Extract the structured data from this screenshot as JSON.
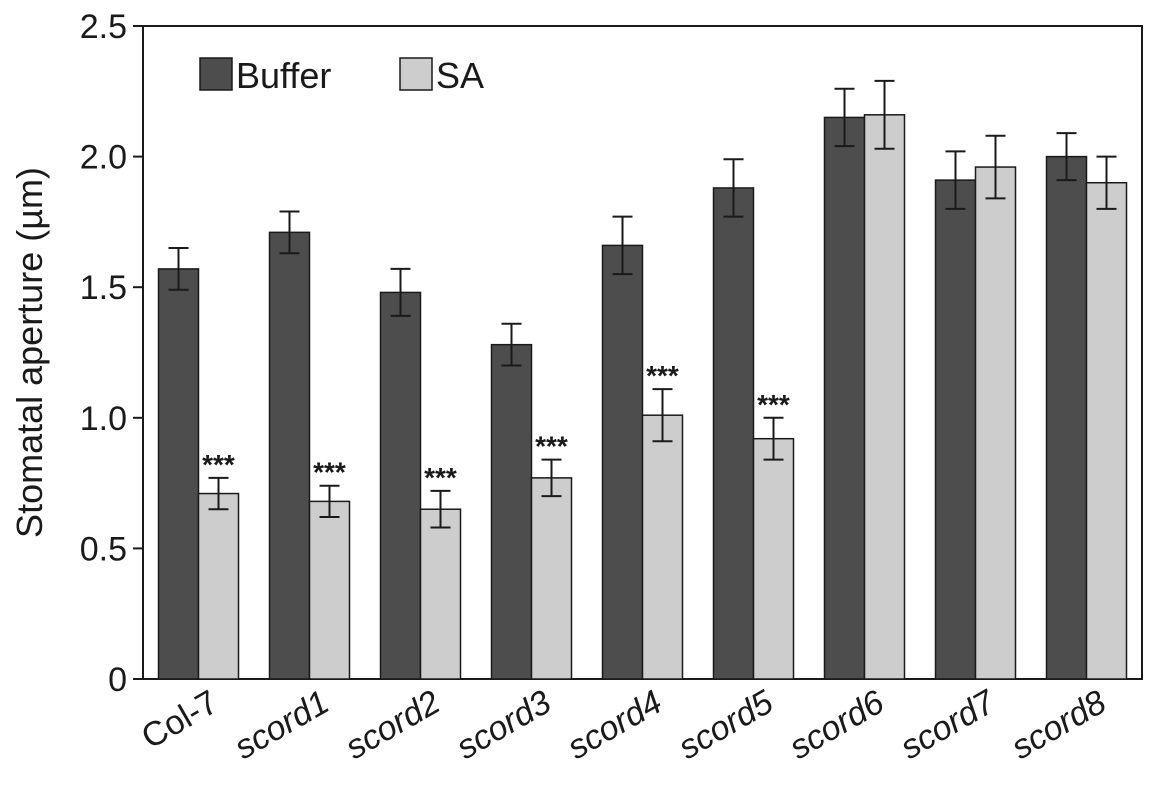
{
  "chart_data": {
    "type": "bar",
    "title": "",
    "xlabel": "",
    "ylabel": "Stomatal aperture (µm)",
    "ylim": [
      0,
      2.5
    ],
    "yticks": [
      0,
      0.5,
      1.0,
      1.5,
      2.0,
      2.5
    ],
    "ytick_labels": [
      "0",
      "0.5",
      "1.0",
      "1.5",
      "2.0",
      "2.5"
    ],
    "categories": [
      {
        "label": "Col-7",
        "italic": false
      },
      {
        "label": "scord1",
        "italic": true
      },
      {
        "label": "scord2",
        "italic": true
      },
      {
        "label": "scord3",
        "italic": true
      },
      {
        "label": "scord4",
        "italic": true
      },
      {
        "label": "scord5",
        "italic": true
      },
      {
        "label": "scord6",
        "italic": true
      },
      {
        "label": "scord7",
        "italic": true
      },
      {
        "label": "scord8",
        "italic": true
      }
    ],
    "series": [
      {
        "name": "Buffer",
        "color": "#4d4d4d",
        "values": [
          1.57,
          1.71,
          1.48,
          1.28,
          1.66,
          1.88,
          2.15,
          1.91,
          2.0
        ],
        "errors": [
          0.08,
          0.08,
          0.09,
          0.08,
          0.11,
          0.11,
          0.11,
          0.11,
          0.09
        ],
        "significance": [
          "",
          "",
          "",
          "",
          "",
          "",
          "",
          "",
          ""
        ]
      },
      {
        "name": "SA",
        "color": "#cdcdcd",
        "values": [
          0.71,
          0.68,
          0.65,
          0.77,
          1.01,
          0.92,
          2.16,
          1.96,
          1.9
        ],
        "errors": [
          0.06,
          0.06,
          0.07,
          0.07,
          0.1,
          0.08,
          0.13,
          0.12,
          0.1
        ],
        "significance": [
          "***",
          "***",
          "***",
          "***",
          "***",
          "***",
          "",
          "",
          ""
        ]
      }
    ],
    "legend": {
      "placement": "top-left"
    },
    "grid": false
  }
}
